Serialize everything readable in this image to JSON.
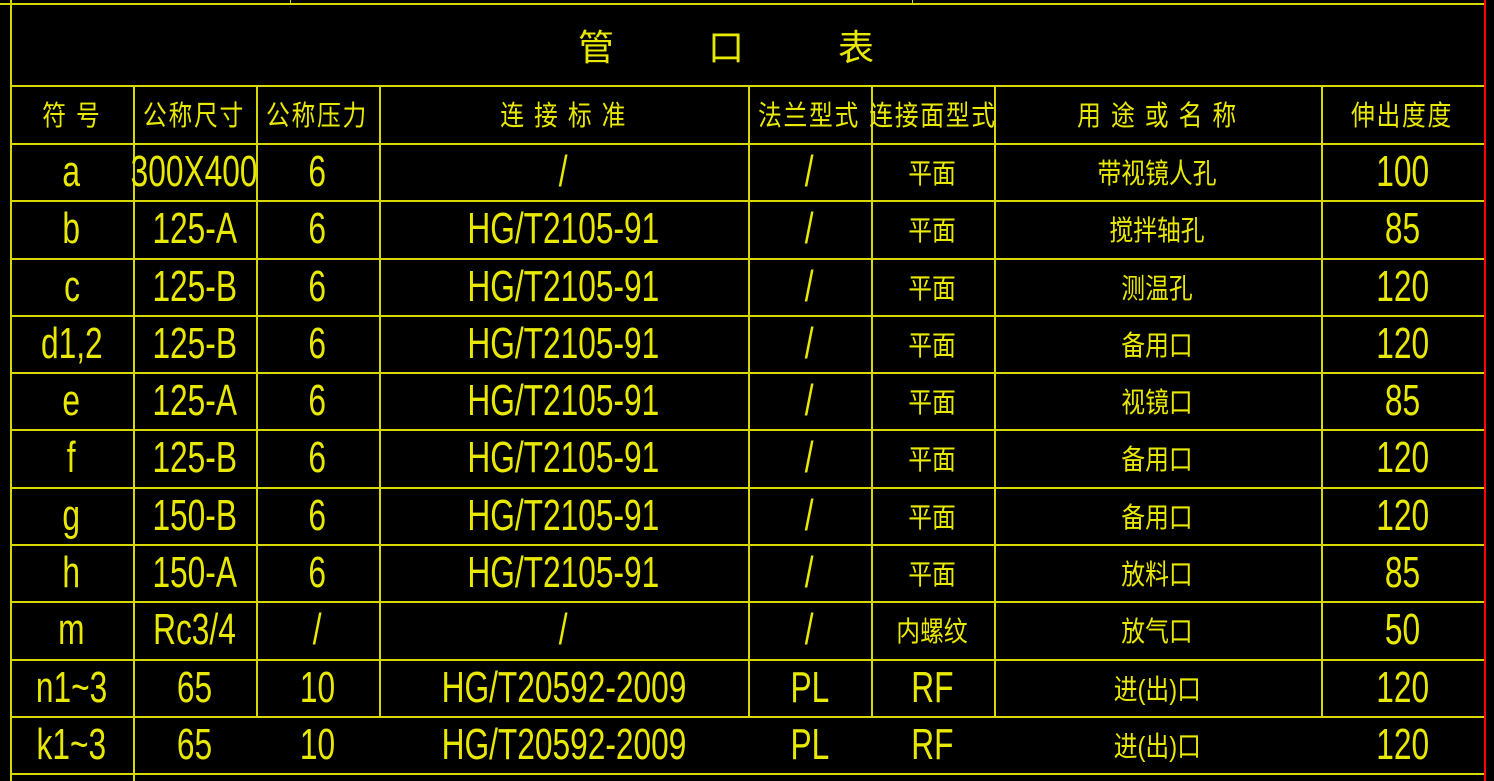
{
  "title": "管 口 表",
  "headers": [
    "符 号",
    "公称尺寸",
    "公称压力",
    "连 接 标 准",
    "法兰型式",
    "连接面型式",
    "用 途 或 名 称",
    "伸出度度"
  ],
  "rows": [
    [
      "a",
      "300X400",
      "6",
      "/",
      "/",
      "平面",
      "带视镜人孔",
      "100"
    ],
    [
      "b",
      "125-A",
      "6",
      "HG/T2105-91",
      "/",
      "平面",
      "搅拌轴孔",
      "85"
    ],
    [
      "c",
      "125-B",
      "6",
      "HG/T2105-91",
      "/",
      "平面",
      "测温孔",
      "120"
    ],
    [
      "d1,2",
      "125-B",
      "6",
      "HG/T2105-91",
      "/",
      "平面",
      "备用口",
      "120"
    ],
    [
      "e",
      "125-A",
      "6",
      "HG/T2105-91",
      "/",
      "平面",
      "视镜口",
      "85"
    ],
    [
      "f",
      "125-B",
      "6",
      "HG/T2105-91",
      "/",
      "平面",
      "备用口",
      "120"
    ],
    [
      "g",
      "150-B",
      "6",
      "HG/T2105-91",
      "/",
      "平面",
      "备用口",
      "120"
    ],
    [
      "h",
      "150-A",
      "6",
      "HG/T2105-91",
      "/",
      "平面",
      "放料口",
      "85"
    ],
    [
      "m",
      "Rc3/4",
      "/",
      "/",
      "/",
      "内螺纹",
      "放气口",
      "50"
    ],
    [
      "n1~3",
      "65",
      "10",
      "HG/T20592-2009",
      "PL",
      "RF",
      "进(出)口",
      "120"
    ],
    [
      "k1~3",
      "65",
      "10",
      "HG/T20592-2009",
      "PL",
      "RF",
      "进(出)口",
      "120"
    ]
  ],
  "colors": {
    "line": "#d8d800",
    "text": "#e8e800",
    "background": "#000000",
    "border_right": "#ff0000"
  }
}
